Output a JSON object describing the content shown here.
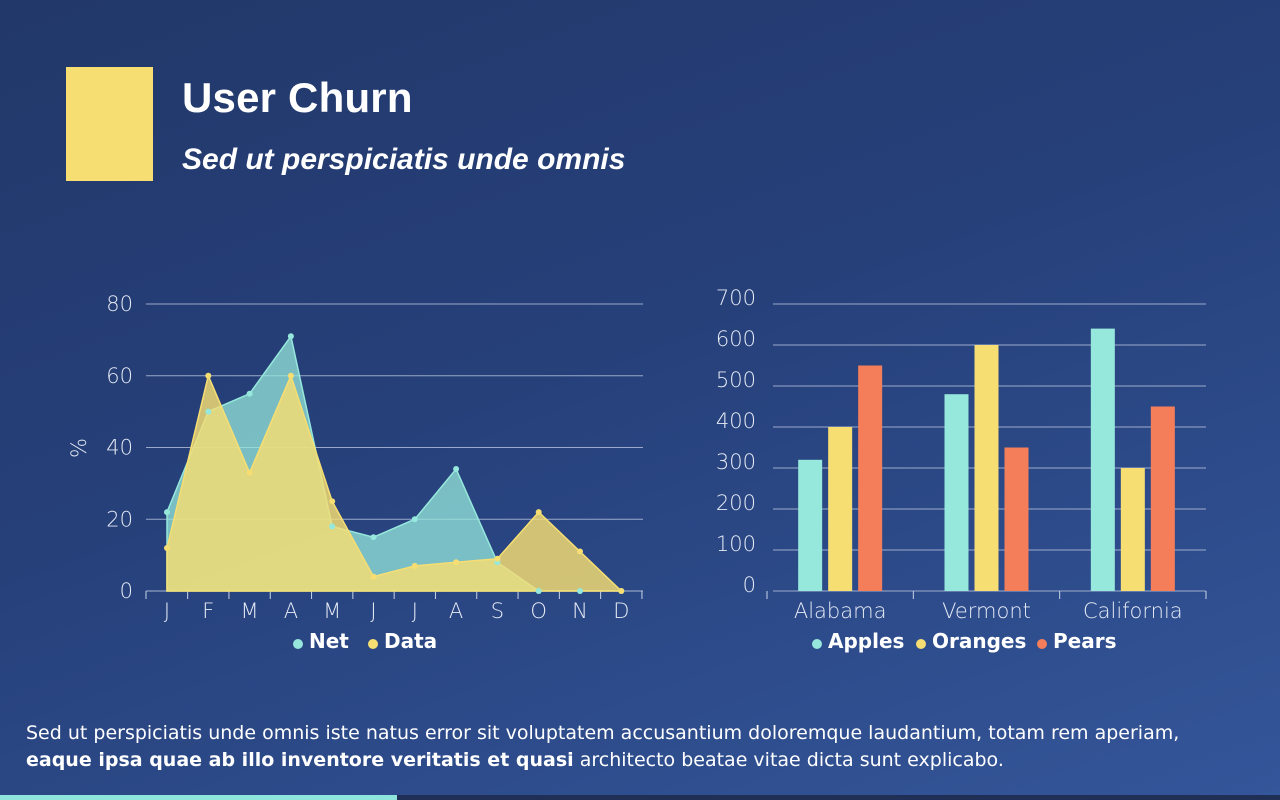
{
  "header": {
    "title": "User Churn",
    "subtitle": "Sed ut perspiciatis unde omnis"
  },
  "colors": {
    "accent": "#f6de73",
    "teal": "#96e8dc",
    "yellow": "#f6de73",
    "coral": "#f47e5a"
  },
  "chart_data": [
    {
      "type": "area",
      "title": "",
      "xlabel": "",
      "ylabel": "%",
      "ylim": [
        0,
        80
      ],
      "yticks": [
        "0",
        "20",
        "40",
        "60",
        "80"
      ],
      "categories": [
        "J",
        "F",
        "M",
        "A",
        "M",
        "J",
        "J",
        "A",
        "S",
        "O",
        "N",
        "D"
      ],
      "series": [
        {
          "name": "Net",
          "color": "#96e8dc",
          "values": [
            22,
            50,
            55,
            71,
            18,
            15,
            20,
            34,
            8,
            0,
            0,
            0
          ]
        },
        {
          "name": "Data",
          "color": "#f6de73",
          "values": [
            12,
            60,
            33,
            60,
            25,
            4,
            7,
            8,
            9,
            22,
            11,
            0
          ]
        }
      ],
      "legend": "bottom"
    },
    {
      "type": "bar",
      "title": "",
      "xlabel": "",
      "ylabel": "",
      "ylim": [
        0,
        700
      ],
      "yticks": [
        "0",
        "100",
        "200",
        "300",
        "400",
        "500",
        "600",
        "700"
      ],
      "categories": [
        "Alabama",
        "Vermont",
        "California"
      ],
      "series": [
        {
          "name": "Apples",
          "color": "#96e8dc",
          "values": [
            320,
            480,
            640
          ]
        },
        {
          "name": "Oranges",
          "color": "#f6de73",
          "values": [
            400,
            600,
            300
          ]
        },
        {
          "name": "Pears",
          "color": "#f47e5a",
          "values": [
            550,
            350,
            450
          ]
        }
      ],
      "legend": "bottom"
    }
  ],
  "footer": {
    "text1": "Sed ut perspiciatis unde omnis iste natus error sit voluptatem accusantium doloremque laudantium, totam rem aperiam,",
    "text2_bold": "eaque ipsa quae ab illo inventore veritatis et quasi",
    "text3": " architecto beatae vitae dicta sunt explicabo."
  },
  "progress": {
    "fraction": 0.31
  }
}
